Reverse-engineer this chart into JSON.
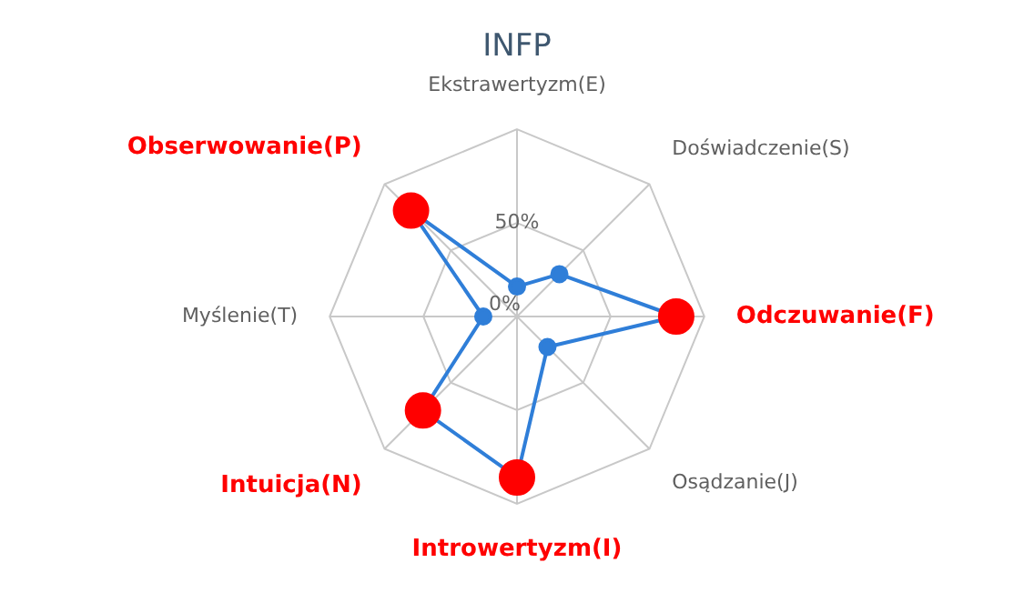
{
  "chart_data": {
    "type": "radar",
    "title": "INFP",
    "categories": [
      "Ekstrawertyzm(E)",
      "Doświadczenie(S)",
      "Odczuwanie(F)",
      "Osądzanie(J)",
      "Introwertyzm(I)",
      "Intuicja(N)",
      "Myślenie(T)",
      "Obserwowanie(P)"
    ],
    "series": [
      {
        "color": "#2f7ed8",
        "values": [
          16,
          32,
          85,
          23,
          86,
          71,
          18,
          80
        ],
        "colors": [
          "#2f7ed8",
          "#2f7ed8",
          "#ff0000",
          "#2f7ed8",
          "#ff0000",
          "#ff0000",
          "#2f7ed8",
          "#ff0000"
        ]
      }
    ],
    "ylim": [
      0,
      100
    ],
    "yticks": [
      {
        "value": 0,
        "label": "0%"
      },
      {
        "value": 50,
        "label": "50%"
      }
    ],
    "grid": true,
    "legend": false,
    "marker": "circle"
  }
}
